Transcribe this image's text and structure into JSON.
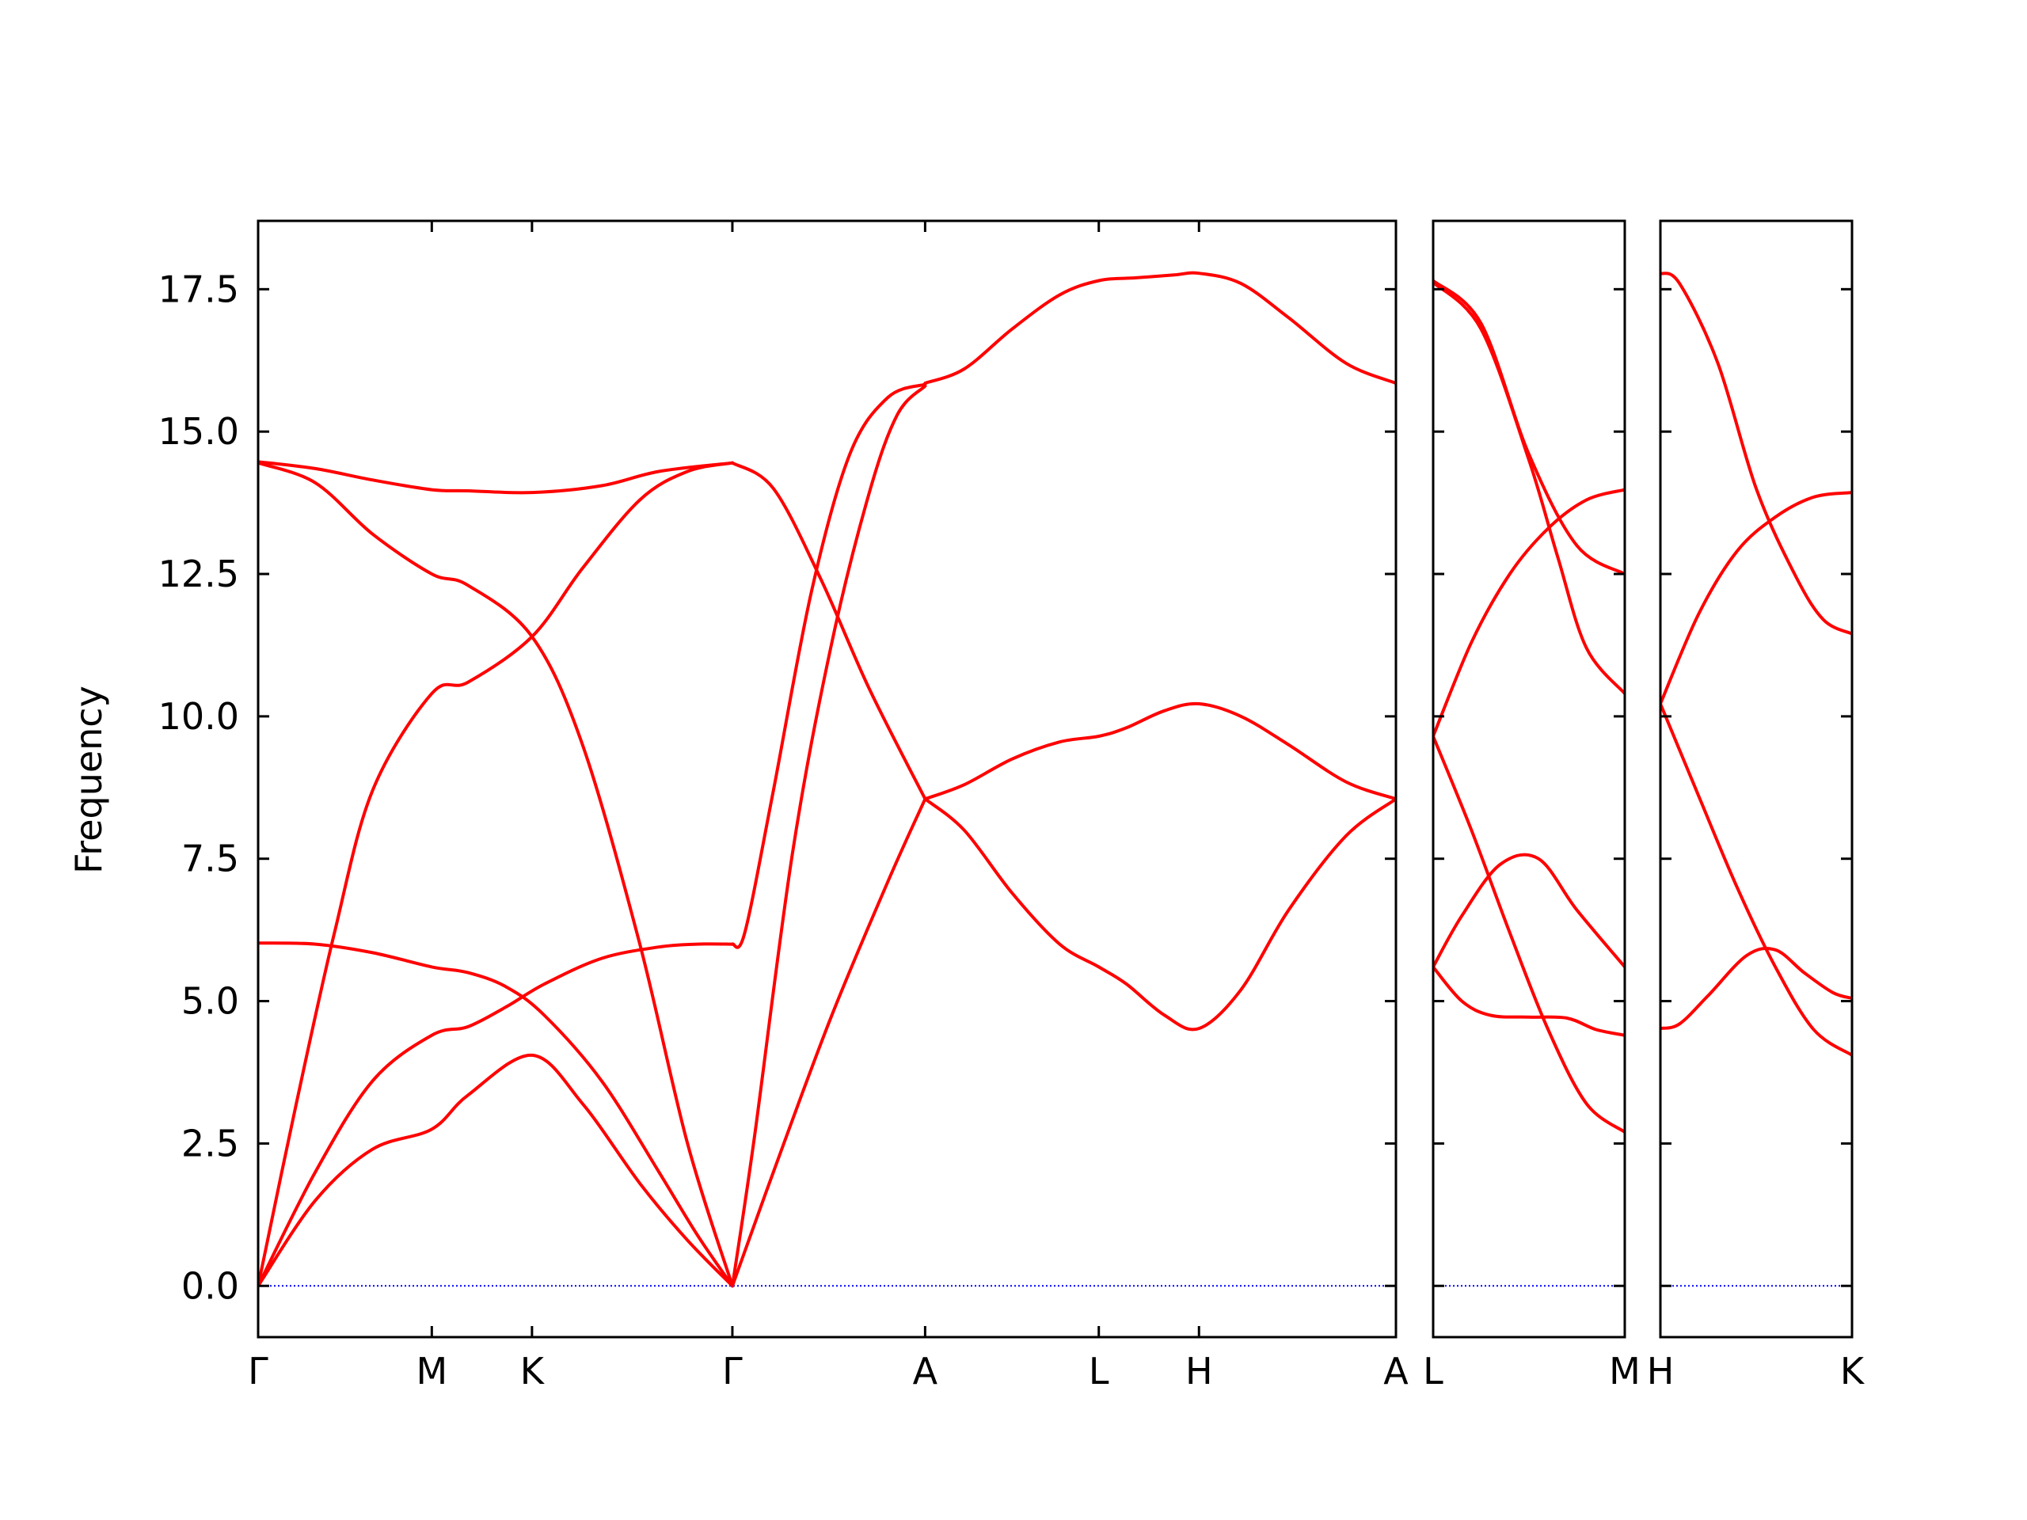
{
  "chart_data": {
    "type": "line",
    "title": "",
    "ylabel": "Frequency",
    "xlabel": "",
    "ylim": [
      -0.9,
      18.7
    ],
    "yticks": [
      0.0,
      2.5,
      5.0,
      7.5,
      10.0,
      12.5,
      15.0,
      17.5
    ],
    "yticklabels": [
      "0.0",
      "2.5",
      "5.0",
      "7.5",
      "10.0",
      "12.5",
      "15.0",
      "17.5"
    ],
    "grid": false,
    "line_color": "#ff0000",
    "zero_line_color": "#0000ff",
    "panels": [
      {
        "name": "Γ-M-K-Γ-A-L-H-A",
        "xlim": [
          0,
          5.962
        ],
        "xticks": [
          0,
          0.91,
          1.435,
          2.485,
          3.495,
          4.405,
          4.93,
          5.962
        ],
        "xticklabels": [
          "Γ",
          "M",
          "K",
          "Γ",
          "A",
          "L",
          "H",
          "A"
        ],
        "series": [
          {
            "x": [
              0,
              0.3,
              0.6,
              0.91,
              1.1,
              1.435,
              1.7,
              2.0,
              2.25,
              2.485
            ],
            "y": [
              0,
              1.5,
              2.4,
              2.75,
              3.35,
              4.05,
              3.2,
              1.8,
              0.8,
              0
            ]
          },
          {
            "x": [
              0,
              0.3,
              0.6,
              0.91,
              1.1,
              1.3,
              1.5,
              1.8,
              2.1,
              2.3,
              2.485
            ],
            "y": [
              0,
              2.0,
              3.6,
              4.4,
              4.55,
              4.9,
              5.3,
              5.75,
              5.95,
              6.0,
              6.0
            ]
          },
          {
            "x": [
              0,
              0.3,
              0.6,
              0.91,
              1.1,
              1.3,
              1.5,
              1.8,
              2.1,
              2.3,
              2.485
            ],
            "y": [
              6.02,
              6.0,
              5.85,
              5.6,
              5.5,
              5.25,
              4.75,
              3.6,
              2.0,
              0.9,
              0
            ]
          },
          {
            "x": [
              0,
              0.2,
              0.4,
              0.6,
              0.91,
              1.1,
              1.435,
              1.7,
              2.0,
              2.25,
              2.485
            ],
            "y": [
              0,
              3.2,
              6.2,
              8.7,
              10.4,
              10.6,
              11.4,
              12.6,
              13.8,
              14.3,
              14.45
            ]
          },
          {
            "x": [
              0,
              0.3,
              0.6,
              0.91,
              1.1,
              1.435,
              1.7,
              2.0,
              2.25,
              2.485
            ],
            "y": [
              14.45,
              14.1,
              13.2,
              12.5,
              12.3,
              11.4,
              9.5,
              6.0,
              2.5,
              0
            ]
          },
          {
            "x": [
              0,
              0.3,
              0.6,
              0.91,
              1.1,
              1.435,
              1.8,
              2.1,
              2.485
            ],
            "y": [
              14.47,
              14.35,
              14.15,
              13.98,
              13.96,
              13.93,
              14.05,
              14.3,
              14.45
            ]
          },
          {
            "x": [
              2.485,
              2.7,
              3.0,
              3.3,
              3.495
            ],
            "y": [
              0,
              2.0,
              4.7,
              7.1,
              8.55
            ]
          },
          {
            "x": [
              2.485,
              2.6,
              2.8,
              3.0,
              3.2,
              3.35,
              3.495
            ],
            "y": [
              0,
              2.6,
              7.6,
              11.2,
              13.9,
              15.3,
              15.8
            ]
          },
          {
            "x": [
              2.485,
              2.55,
              2.7,
              2.9,
              3.1,
              3.3,
              3.495
            ],
            "y": [
              6.0,
              6.2,
              8.7,
              12.2,
              14.6,
              15.6,
              15.83
            ]
          },
          {
            "x": [
              2.485,
              2.7,
              2.95,
              3.2,
              3.495
            ],
            "y": [
              14.45,
              14.0,
              12.4,
              10.5,
              8.55
            ]
          },
          {
            "x": [
              3.495,
              3.7,
              3.95,
              4.2,
              4.405,
              4.55,
              4.75,
              4.93,
              5.15,
              5.4,
              5.7,
              5.962
            ],
            "y": [
              8.55,
              8.8,
              9.25,
              9.55,
              9.65,
              9.8,
              10.1,
              10.22,
              10.0,
              9.5,
              8.85,
              8.55
            ]
          },
          {
            "x": [
              3.495,
              3.7,
              3.95,
              4.2,
              4.405,
              4.55,
              4.75,
              4.93,
              5.15,
              5.4,
              5.7,
              5.962
            ],
            "y": [
              8.55,
              8.0,
              6.9,
              6.0,
              5.6,
              5.3,
              4.75,
              4.52,
              5.2,
              6.6,
              7.9,
              8.55
            ]
          },
          {
            "x": [
              3.495,
              3.7,
              3.95,
              4.2,
              4.405,
              4.6,
              4.8,
              4.93,
              5.15,
              5.4,
              5.7,
              5.962
            ],
            "y": [
              15.85,
              16.1,
              16.8,
              17.4,
              17.65,
              17.7,
              17.75,
              17.78,
              17.6,
              17.0,
              16.2,
              15.85
            ]
          }
        ]
      },
      {
        "name": "L-M",
        "xlim": [
          0,
          1
        ],
        "xticks": [
          0,
          1
        ],
        "xticklabels": [
          "L",
          "M"
        ],
        "series": [
          {
            "x": [
              0,
              0.25,
              0.5,
              0.75,
              1.0
            ],
            "y": [
              17.65,
              16.9,
              14.6,
              13.0,
              12.5
            ]
          },
          {
            "x": [
              0,
              0.25,
              0.5,
              0.65,
              0.8,
              1.0
            ],
            "y": [
              17.62,
              16.8,
              14.5,
              12.8,
              11.2,
              10.4
            ]
          },
          {
            "x": [
              0,
              0.2,
              0.4,
              0.6,
              0.8,
              1.0
            ],
            "y": [
              9.65,
              11.3,
              12.5,
              13.3,
              13.8,
              13.98
            ]
          },
          {
            "x": [
              0,
              0.2,
              0.4,
              0.6,
              0.8,
              1.0
            ],
            "y": [
              9.65,
              8.0,
              6.2,
              4.5,
              3.2,
              2.7
            ]
          },
          {
            "x": [
              0,
              0.15,
              0.35,
              0.55,
              0.75,
              1.0
            ],
            "y": [
              5.6,
              6.5,
              7.4,
              7.5,
              6.6,
              5.6
            ]
          },
          {
            "x": [
              0,
              0.15,
              0.3,
              0.5,
              0.7,
              0.85,
              1.0
            ],
            "y": [
              5.6,
              5.0,
              4.75,
              4.72,
              4.7,
              4.5,
              4.4
            ]
          }
        ]
      },
      {
        "name": "H-K",
        "xlim": [
          0,
          1
        ],
        "xticks": [
          0,
          1
        ],
        "xticklabels": [
          "H",
          "K"
        ],
        "series": [
          {
            "x": [
              0,
              0.1,
              0.3,
              0.5,
              0.7,
              0.85,
              1.0
            ],
            "y": [
              17.78,
              17.6,
              16.2,
              14.0,
              12.5,
              11.7,
              11.45
            ]
          },
          {
            "x": [
              0,
              0.2,
              0.4,
              0.6,
              0.8,
              1.0
            ],
            "y": [
              10.22,
              11.8,
              12.9,
              13.5,
              13.85,
              13.93
            ]
          },
          {
            "x": [
              0,
              0.2,
              0.4,
              0.6,
              0.8,
              1.0
            ],
            "y": [
              10.22,
              8.6,
              7.0,
              5.6,
              4.5,
              4.05
            ]
          },
          {
            "x": [
              0,
              0.1,
              0.25,
              0.45,
              0.6,
              0.75,
              0.9,
              1.0
            ],
            "y": [
              4.52,
              4.6,
              5.1,
              5.8,
              5.9,
              5.5,
              5.15,
              5.05
            ]
          }
        ]
      }
    ]
  }
}
